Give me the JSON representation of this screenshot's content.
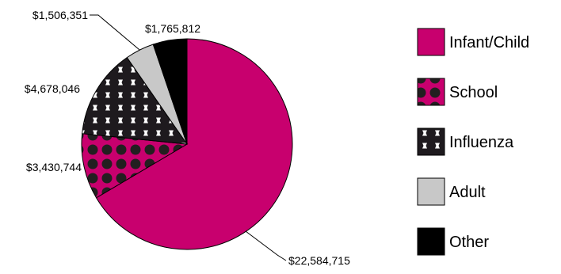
{
  "chart_data": {
    "type": "pie",
    "categories": [
      "Infant/Child",
      "School",
      "Influenza",
      "Adult",
      "Other"
    ],
    "values": [
      22584715,
      3430744,
      4678046,
      1506351,
      1765812
    ],
    "value_labels": [
      "$22,584,715",
      "$3,430,744",
      "$4,678,046",
      "$1,506,351",
      "$1,765,812"
    ],
    "legend": {
      "placement": "right",
      "entries": [
        "Infant/Child",
        "School",
        "Influenza",
        "Adult",
        "Other"
      ]
    },
    "colors": {
      "Infant/Child": "#C8006E",
      "School": "#C8006E",
      "Influenza": "#1E1A1E",
      "Adult": "#C8C8C8",
      "Other": "#000000"
    },
    "patterns": {
      "Infant/Child": "solid",
      "School": "dark-dots-on-magenta",
      "Influenza": "white-dots-on-black",
      "Adult": "solid",
      "Other": "solid"
    }
  }
}
